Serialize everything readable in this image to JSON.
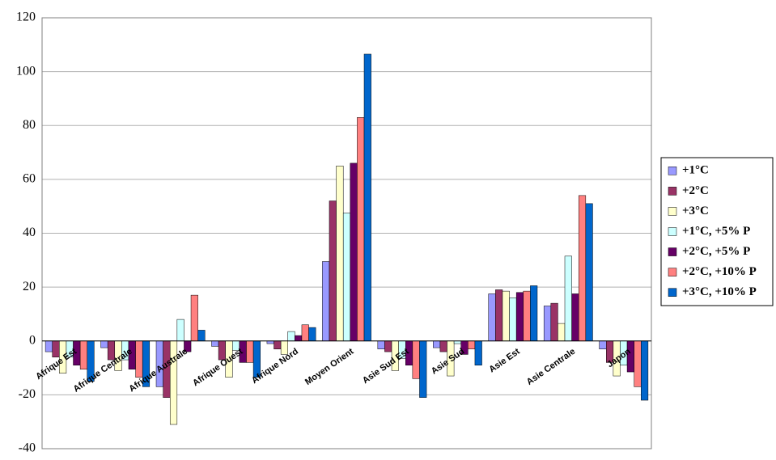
{
  "chart_data": {
    "type": "bar",
    "categories": [
      "Afrique Est",
      "Afrique Centrale",
      "Afrique Australe",
      "Afrique Ouest",
      "Afrique Nord",
      "Moyen Orient",
      "Asie Sud Est",
      "Asie Sud",
      "Asie Est",
      "Asie Centrale",
      "Japon"
    ],
    "series": [
      {
        "name": "+1°C",
        "color": "#9999ff",
        "values": [
          -4,
          -2.5,
          -17,
          -2,
          -1,
          29.5,
          -3,
          -2.5,
          17.5,
          13,
          -3
        ]
      },
      {
        "name": "+2°C",
        "color": "#993366",
        "values": [
          -6,
          -7,
          -21,
          -7,
          -3,
          52,
          -4,
          -4,
          19,
          14,
          -8
        ]
      },
      {
        "name": "+3°C",
        "color": "#ffffcc",
        "values": [
          -12,
          -11,
          -31,
          -13.5,
          -5,
          65,
          -11,
          -13,
          18.5,
          6.5,
          -13
        ]
      },
      {
        "name": "+1°C, +5% P",
        "color": "#ccffff",
        "values": [
          -6,
          -7,
          8,
          -3.5,
          3.5,
          47.5,
          -6.5,
          -1,
          16,
          31.5,
          -9
        ]
      },
      {
        "name": "+2°C, +5% P",
        "color": "#660066",
        "values": [
          -9,
          -10.5,
          -4,
          -8,
          2,
          66,
          -9,
          -5,
          18,
          17.5,
          -11.5
        ]
      },
      {
        "name": "+2°C, +10% P",
        "color": "#ff8080",
        "values": [
          -10.5,
          -13.5,
          17,
          -8,
          6,
          83,
          -14,
          -3,
          18.5,
          54,
          -17
        ]
      },
      {
        "name": "+3°C, +10% P",
        "color": "#0066cc",
        "values": [
          -15,
          -17,
          4,
          -13.5,
          5,
          106.5,
          -21,
          -9,
          20.5,
          51,
          -22
        ]
      }
    ],
    "ylim": [
      -40,
      120
    ],
    "yticks": [
      -40,
      -20,
      0,
      20,
      40,
      60,
      80,
      100,
      120
    ],
    "grid": true,
    "legend": "right"
  }
}
